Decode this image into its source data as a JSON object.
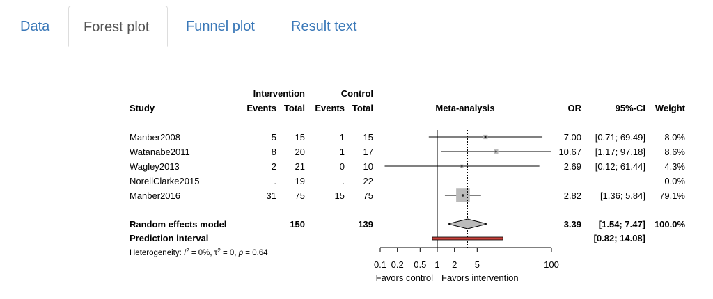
{
  "tabs": [
    {
      "label": "Data",
      "active": false
    },
    {
      "label": "Forest plot",
      "active": true
    },
    {
      "label": "Funnel plot",
      "active": false
    },
    {
      "label": "Result text",
      "active": false
    }
  ],
  "forest": {
    "group_headers": {
      "intervention": "Intervention",
      "control": "Control"
    },
    "col_headers": {
      "study": "Study",
      "events_i": "Events",
      "total_i": "Total",
      "events_c": "Events",
      "total_c": "Total",
      "meta": "Meta-analysis",
      "or": "OR",
      "ci": "95%-CI",
      "weight": "Weight"
    },
    "studies": [
      {
        "name": "Manber2008",
        "ev_i": "5",
        "tot_i": "15",
        "ev_c": "1",
        "tot_c": "15",
        "or": 7.0,
        "lo": 0.71,
        "hi": 69.49,
        "or_txt": "7.00",
        "ci_txt": "[0.71; 69.49]",
        "w_txt": "8.0%",
        "w": 8.0
      },
      {
        "name": "Watanabe2011",
        "ev_i": "8",
        "tot_i": "20",
        "ev_c": "1",
        "tot_c": "17",
        "or": 10.67,
        "lo": 1.17,
        "hi": 97.18,
        "or_txt": "10.67",
        "ci_txt": "[1.17; 97.18]",
        "w_txt": "8.6%",
        "w": 8.6
      },
      {
        "name": "Wagley2013",
        "ev_i": "2",
        "tot_i": "21",
        "ev_c": "0",
        "tot_c": "10",
        "or": 2.69,
        "lo": 0.12,
        "hi": 61.44,
        "or_txt": "2.69",
        "ci_txt": "[0.12; 61.44]",
        "w_txt": "4.3%",
        "w": 4.3
      },
      {
        "name": "NorellClarke2015",
        "ev_i": ".",
        "tot_i": "19",
        "ev_c": ".",
        "tot_c": "22",
        "or": null,
        "lo": null,
        "hi": null,
        "or_txt": "",
        "ci_txt": "",
        "w_txt": "0.0%",
        "w": 0.0
      },
      {
        "name": "Manber2016",
        "ev_i": "31",
        "tot_i": "75",
        "ev_c": "15",
        "tot_c": "75",
        "or": 2.82,
        "lo": 1.36,
        "hi": 5.84,
        "or_txt": "2.82",
        "ci_txt": "[1.36; 5.84]",
        "w_txt": "79.1%",
        "w": 79.1
      }
    ],
    "random_effects": {
      "label": "Random effects model",
      "tot_i": "150",
      "tot_c": "139",
      "or": 3.39,
      "lo": 1.54,
      "hi": 7.47,
      "or_txt": "3.39",
      "ci_txt": "[1.54; 7.47]",
      "w_txt": "100.0%"
    },
    "prediction": {
      "label": "Prediction interval",
      "lo": 0.82,
      "hi": 14.08,
      "ci_txt": "[0.82; 14.08]",
      "color": "#c8413b"
    },
    "heterogeneity": {
      "prefix": "Heterogeneity: ",
      "i2": "I",
      "i2_val": " = 0%, ",
      "tau": "τ",
      "tau_val": " = 0, ",
      "p": "p",
      "p_val": " = 0.64"
    },
    "axis": {
      "ticks": [
        0.1,
        0.2,
        0.5,
        1,
        2,
        5,
        100
      ],
      "tick_labels": [
        "0.1",
        "0.2",
        "0.5",
        "1",
        "2",
        "5",
        "100"
      ],
      "log_scale": true,
      "favors_left": "Favors control",
      "favors_right": "Favors intervention"
    }
  }
}
